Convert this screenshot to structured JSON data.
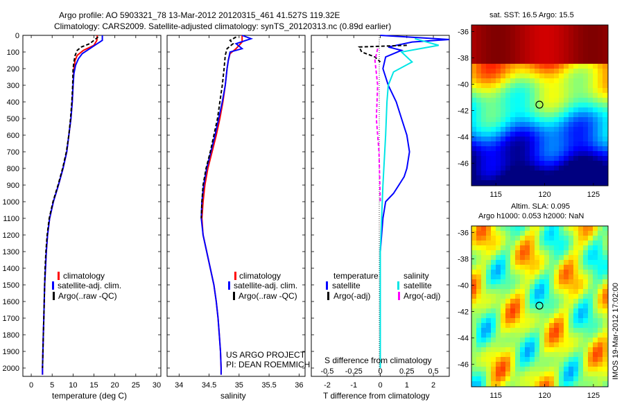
{
  "header": {
    "title_line1": "Argo profile: AO 5903321_78 13-Mar-2012 20120315_461 41.527S 119.32E",
    "title_line2": "Climatology: CARS2009. Satellite-adjusted climatology: synTS_20120313.nc (0.89d earlier)"
  },
  "credits": {
    "project": "US ARGO PROJECT",
    "pi": "PI: DEAN ROEMMICH",
    "imos": "IMOS 19-Mar-2012 17:02:00"
  },
  "colors": {
    "climatology": "#ff0000",
    "satellite": "#0000ff",
    "argo": "#000000",
    "sal_satellite": "#00e5e5",
    "sal_argo": "#ff00ff"
  },
  "chart_data": [
    {
      "type": "line",
      "id": "temperature",
      "xlabel": "temperature (deg C)",
      "ylabel": "",
      "xlim": [
        -2,
        31
      ],
      "ylim": [
        2050,
        0
      ],
      "xticks": [
        0,
        5,
        10,
        15,
        20,
        25,
        30
      ],
      "yticks": [
        0,
        100,
        200,
        300,
        400,
        500,
        600,
        700,
        800,
        900,
        1000,
        1100,
        1200,
        1300,
        1400,
        1500,
        1600,
        1700,
        1800,
        1900,
        2000
      ],
      "legend": [
        "climatology",
        "satellite-adj. clim.",
        "Argo(..raw -QC)"
      ],
      "series": [
        {
          "name": "climatology",
          "color": "#ff0000",
          "dash": false,
          "points": [
            [
              15.8,
              0
            ],
            [
              15.7,
              30
            ],
            [
              15,
              60
            ],
            [
              12.5,
              90
            ],
            [
              11,
              120
            ],
            [
              10.5,
              150
            ],
            [
              10.2,
              200
            ],
            [
              10,
              300
            ],
            [
              9.8,
              400
            ],
            [
              9.5,
              500
            ],
            [
              9,
              600
            ],
            [
              8.5,
              700
            ],
            [
              7.6,
              800
            ],
            [
              6.5,
              900
            ],
            [
              5.3,
              1000
            ],
            [
              4.4,
              1100
            ],
            [
              3.9,
              1200
            ],
            [
              3.6,
              1300
            ],
            [
              3.4,
              1400
            ],
            [
              3.2,
              1500
            ],
            [
              3.1,
              1600
            ],
            [
              3,
              1700
            ],
            [
              2.9,
              1800
            ],
            [
              2.8,
              1900
            ],
            [
              2.7,
              2000
            ],
            [
              2.7,
              2040
            ]
          ]
        },
        {
          "name": "satellite-adj. clim.",
          "color": "#0000ff",
          "dash": false,
          "points": [
            [
              17,
              0
            ],
            [
              17,
              30
            ],
            [
              15.5,
              55
            ],
            [
              14,
              80
            ],
            [
              12.2,
              110
            ],
            [
              11.3,
              140
            ],
            [
              10.6,
              180
            ],
            [
              10.2,
              230
            ],
            [
              10,
              300
            ],
            [
              9.8,
              400
            ],
            [
              9.5,
              500
            ],
            [
              9,
              600
            ],
            [
              8.5,
              700
            ],
            [
              7.6,
              800
            ],
            [
              6.5,
              900
            ],
            [
              5.3,
              1000
            ],
            [
              4.4,
              1100
            ],
            [
              3.9,
              1200
            ],
            [
              3.6,
              1300
            ],
            [
              3.4,
              1400
            ],
            [
              3.2,
              1500
            ],
            [
              3.1,
              1600
            ],
            [
              3,
              1700
            ],
            [
              2.9,
              1800
            ],
            [
              2.8,
              1900
            ],
            [
              2.7,
              2000
            ],
            [
              2.7,
              2040
            ]
          ]
        },
        {
          "name": "Argo(..raw -QC)",
          "color": "#000000",
          "dash": true,
          "points": [
            [
              16,
              10
            ],
            [
              15,
              30
            ],
            [
              14,
              50
            ],
            [
              12,
              70
            ],
            [
              11,
              90
            ],
            [
              10.5,
              120
            ],
            [
              10.2,
              160
            ],
            [
              10,
              200
            ],
            [
              9.9,
              300
            ],
            [
              9.7,
              400
            ],
            [
              9.4,
              500
            ],
            [
              9,
              600
            ],
            [
              8.4,
              700
            ],
            [
              7.5,
              800
            ],
            [
              6.4,
              900
            ],
            [
              5.2,
              1000
            ],
            [
              4.3,
              1100
            ],
            [
              3.8,
              1200
            ],
            [
              3.5,
              1300
            ],
            [
              3.3,
              1400
            ],
            [
              3.2,
              1500
            ],
            [
              3.1,
              1600
            ],
            [
              3,
              1700
            ],
            [
              2.9,
              1800
            ],
            [
              2.8,
              1900
            ],
            [
              2.7,
              2000
            ]
          ]
        }
      ]
    },
    {
      "type": "line",
      "id": "salinity",
      "xlabel": "salinity",
      "ylabel": "",
      "xlim": [
        33.8,
        36.1
      ],
      "ylim": [
        2050,
        0
      ],
      "xticks": [
        34,
        34.5,
        35,
        35.5,
        36
      ],
      "legend": [
        "climatology",
        "satellite-adj. clim.",
        "Argo(..raw -QC)"
      ],
      "series": [
        {
          "name": "climatology",
          "color": "#ff0000",
          "dash": false,
          "points": [
            [
              35.05,
              0
            ],
            [
              35.05,
              40
            ],
            [
              34.95,
              80
            ],
            [
              34.85,
              110
            ],
            [
              34.82,
              150
            ],
            [
              34.8,
              200
            ],
            [
              34.77,
              300
            ],
            [
              34.73,
              400
            ],
            [
              34.68,
              500
            ],
            [
              34.62,
              600
            ],
            [
              34.55,
              700
            ],
            [
              34.48,
              800
            ],
            [
              34.43,
              900
            ],
            [
              34.4,
              1000
            ],
            [
              34.38,
              1100
            ],
            [
              34.4,
              1200
            ],
            [
              34.46,
              1300
            ],
            [
              34.52,
              1400
            ],
            [
              34.58,
              1500
            ],
            [
              34.62,
              1600
            ],
            [
              34.65,
              1700
            ],
            [
              34.67,
              1800
            ],
            [
              34.69,
              1900
            ],
            [
              34.7,
              2000
            ],
            [
              34.7,
              2040
            ]
          ]
        },
        {
          "name": "satellite-adj. clim.",
          "color": "#0000ff",
          "dash": false,
          "points": [
            [
              35.05,
              0
            ],
            [
              35.2,
              20
            ],
            [
              34.95,
              50
            ],
            [
              35.05,
              80
            ],
            [
              34.85,
              100
            ],
            [
              34.82,
              150
            ],
            [
              34.8,
              200
            ],
            [
              34.77,
              300
            ],
            [
              34.72,
              400
            ],
            [
              34.66,
              500
            ],
            [
              34.6,
              600
            ],
            [
              34.53,
              700
            ],
            [
              34.46,
              800
            ],
            [
              34.41,
              900
            ],
            [
              34.38,
              1000
            ],
            [
              34.37,
              1100
            ],
            [
              34.4,
              1200
            ],
            [
              34.46,
              1300
            ],
            [
              34.52,
              1400
            ],
            [
              34.58,
              1500
            ],
            [
              34.62,
              1600
            ],
            [
              34.65,
              1700
            ],
            [
              34.67,
              1800
            ],
            [
              34.69,
              1900
            ],
            [
              34.7,
              2000
            ],
            [
              34.7,
              2040
            ]
          ]
        },
        {
          "name": "Argo(..raw -QC)",
          "color": "#000000",
          "dash": true,
          "points": [
            [
              34.95,
              10
            ],
            [
              34.85,
              30
            ],
            [
              34.9,
              50
            ],
            [
              34.8,
              80
            ],
            [
              34.77,
              120
            ],
            [
              34.75,
              200
            ],
            [
              34.72,
              300
            ],
            [
              34.68,
              400
            ],
            [
              34.64,
              500
            ],
            [
              34.58,
              600
            ],
            [
              34.52,
              700
            ],
            [
              34.45,
              800
            ],
            [
              34.4,
              900
            ],
            [
              34.38,
              1000
            ],
            [
              34.37,
              1100
            ]
          ]
        }
      ]
    },
    {
      "type": "line",
      "id": "difference",
      "xlabel": "T difference from climatology",
      "xlabel_top": "S difference from climatology",
      "xlim": [
        -2.6,
        2.6
      ],
      "ylim": [
        2050,
        0
      ],
      "xticks": [
        -2,
        -1,
        0,
        1,
        2
      ],
      "xticks_s": [
        "-0.5",
        "-0.25",
        "0",
        "0.25",
        "0.5"
      ],
      "legend_titles": [
        "temperature",
        "salinity"
      ],
      "legend": [
        "satellite",
        "Argo(-adj)",
        "satellite",
        "Argo(-adj)"
      ],
      "series": [
        {
          "name": "temperature satellite",
          "color": "#0000ff",
          "dash": false,
          "points": [
            [
              0,
              0
            ],
            [
              2.6,
              25
            ],
            [
              1.2,
              40
            ],
            [
              0.3,
              70
            ],
            [
              0.8,
              90
            ],
            [
              0.2,
              130
            ],
            [
              0.1,
              200
            ],
            [
              0.3,
              300
            ],
            [
              0.6,
              400
            ],
            [
              0.8,
              500
            ],
            [
              1,
              600
            ],
            [
              1.1,
              700
            ],
            [
              1,
              800
            ],
            [
              0.9,
              850
            ],
            [
              0.7,
              900
            ],
            [
              0.5,
              950
            ],
            [
              0.2,
              1000
            ],
            [
              0.1,
              1100
            ],
            [
              0.05,
              1200
            ],
            [
              0,
              1300
            ],
            [
              0,
              2000
            ]
          ]
        },
        {
          "name": "temperature Argo(-adj)",
          "color": "#000000",
          "dash": true,
          "points": [
            [
              1,
              60
            ],
            [
              -0.8,
              70
            ],
            [
              -0.7,
              100
            ],
            [
              -0.2,
              130
            ],
            [
              0,
              160
            ]
          ]
        },
        {
          "name": "salinity satellite",
          "color": "#00e5e5",
          "dash": false,
          "points": [
            [
              1.3,
              20
            ],
            [
              2.2,
              60
            ],
            [
              0.8,
              100
            ],
            [
              1.2,
              160
            ],
            [
              0.5,
              220
            ],
            [
              0.3,
              300
            ],
            [
              0.25,
              400
            ],
            [
              0.2,
              600
            ],
            [
              0.1,
              900
            ],
            [
              0.05,
              1100
            ],
            [
              0,
              1300
            ],
            [
              0,
              2000
            ]
          ]
        },
        {
          "name": "salinity Argo(-adj)",
          "color": "#ff00ff",
          "dash": true,
          "points": [
            [
              -0.1,
              80
            ],
            [
              -0.2,
              150
            ],
            [
              -0.1,
              300
            ],
            [
              -0.15,
              500
            ],
            [
              -0.05,
              700
            ],
            [
              0,
              1000
            ]
          ]
        }
      ]
    },
    {
      "type": "heatmap",
      "id": "sst_map",
      "title": "sat. SST: 16.5 Argo: 15.5",
      "xlim": [
        112.5,
        126.5
      ],
      "ylim": [
        -47.7,
        -35.5
      ],
      "xticks": [
        115,
        120,
        125
      ],
      "yticks": [
        -36,
        -38,
        -40,
        -42,
        -44,
        -46
      ],
      "marker": [
        119.32,
        -41.527
      ]
    },
    {
      "type": "heatmap",
      "id": "sla_map",
      "title_line1": "Altim. SLA: 0.095",
      "title_line2": "Argo h1000: 0.053 h2000: NaN",
      "xlim": [
        112.5,
        126.5
      ],
      "ylim": [
        -47.7,
        -35.5
      ],
      "xticks": [
        115,
        120,
        125
      ],
      "yticks": [
        -36,
        -38,
        -40,
        -42,
        -44,
        -46
      ],
      "marker": [
        119.32,
        -41.527
      ]
    }
  ]
}
